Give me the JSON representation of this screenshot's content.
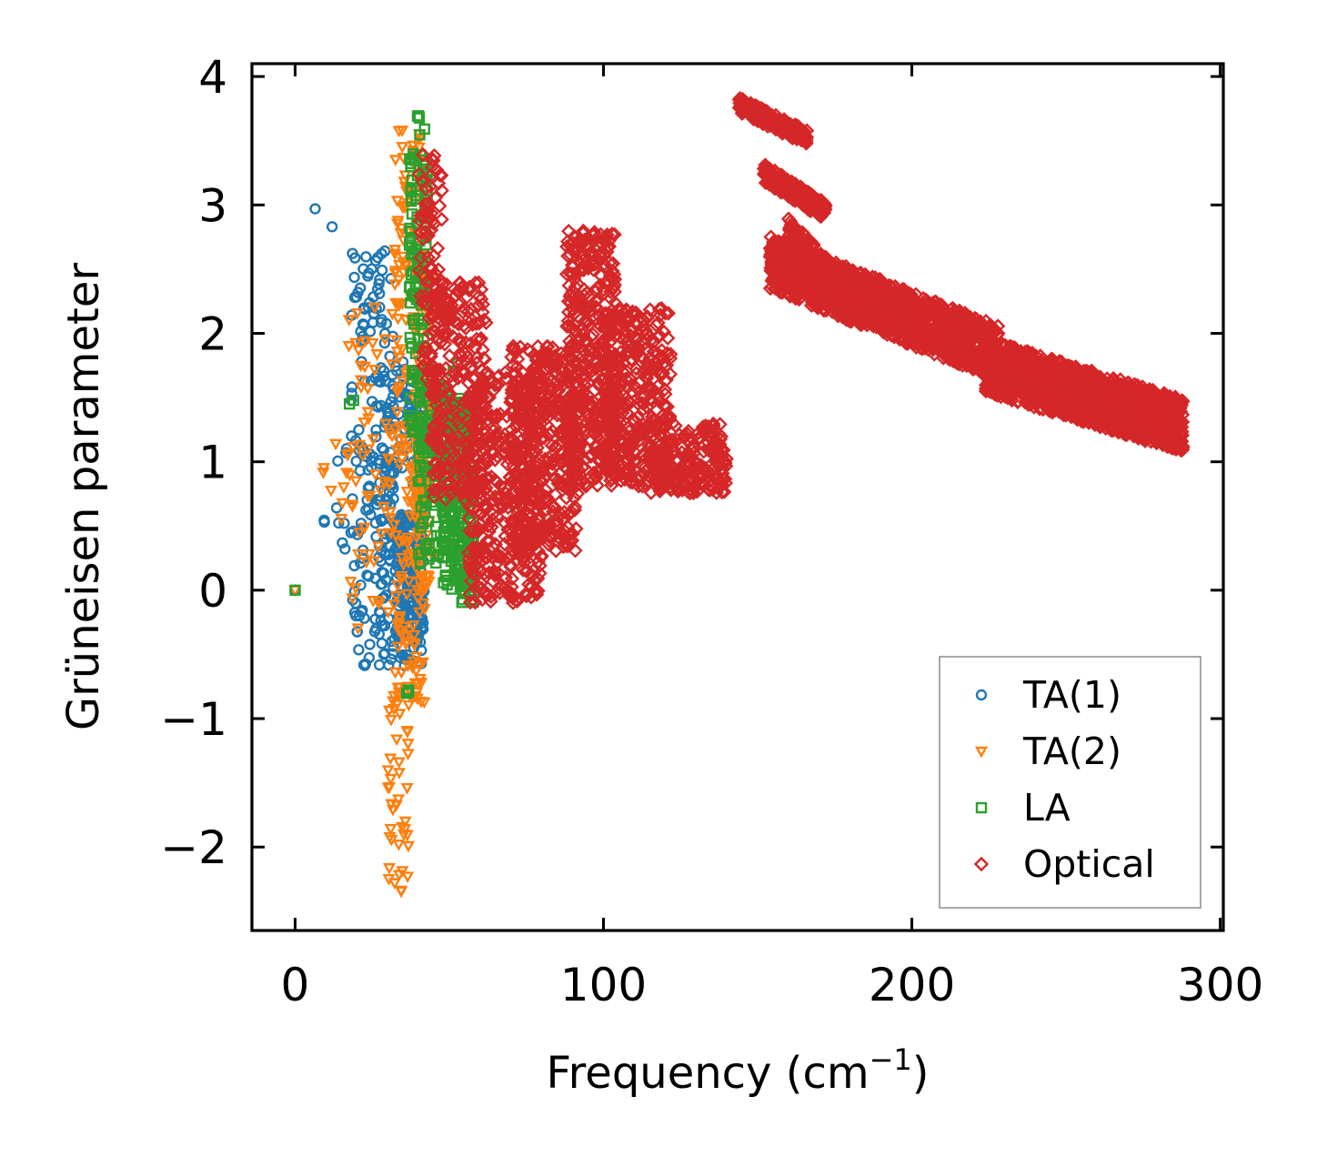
{
  "chart_data": {
    "type": "scatter",
    "title": "",
    "xlabel": "Frequency (cm",
    "xlabel_sup": "−1",
    "xlabel_end": ")",
    "ylabel": "Grüneisen parameter",
    "xlim": [
      -14,
      301
    ],
    "ylim": [
      -2.65,
      4.1
    ],
    "xticks": [
      0,
      100,
      200,
      300
    ],
    "xtick_labels": [
      "0",
      "100",
      "200",
      "300"
    ],
    "yticks": [
      -2,
      -1,
      0,
      1,
      2,
      3,
      4
    ],
    "ytick_labels": [
      "−2",
      "−1",
      "0",
      "1",
      "2",
      "3",
      "4"
    ],
    "grid": false,
    "legend_position": "lower-right",
    "series": [
      {
        "name": "TA(1)",
        "label": "TA(1)",
        "marker": "circle",
        "color": "#1f77b4",
        "clusters": [
          {
            "x": [
              0.0,
              0.0
            ],
            "y": [
              0.0,
              0.0
            ],
            "n": 2
          },
          {
            "x": [
              6.5,
              6.5
            ],
            "y": [
              2.97,
              2.97
            ],
            "n": 1
          },
          {
            "x": [
              12.0,
              12.0
            ],
            "y": [
              2.83,
              2.83
            ],
            "n": 1
          },
          {
            "x": [
              8.0,
              10.0
            ],
            "y": [
              0.52,
              0.55
            ],
            "n": 2
          },
          {
            "x": [
              13.0,
              17.0
            ],
            "y": [
              0.1,
              1.25
            ],
            "n": 8
          },
          {
            "x": [
              18.0,
              32.0
            ],
            "y": [
              -0.6,
              2.65
            ],
            "n": 170
          },
          {
            "x": [
              28.0,
              42.0
            ],
            "y": [
              -0.6,
              1.8
            ],
            "n": 180
          },
          {
            "x": [
              33.0,
              42.0
            ],
            "y": [
              -0.4,
              0.6
            ],
            "n": 120
          }
        ]
      },
      {
        "name": "TA(2)",
        "label": "TA(2)",
        "marker": "triangle-down",
        "color": "#ff7f0e",
        "clusters": [
          {
            "x": [
              0.0,
              0.0
            ],
            "y": [
              0.0,
              0.0
            ],
            "n": 1
          },
          {
            "x": [
              9.0,
              22.0
            ],
            "y": [
              0.5,
              1.25
            ],
            "n": 12
          },
          {
            "x": [
              17.0,
              32.0
            ],
            "y": [
              -0.3,
              2.3
            ],
            "n": 60
          },
          {
            "x": [
              30.0,
              37.0
            ],
            "y": [
              -2.35,
              -0.8
            ],
            "n": 40
          },
          {
            "x": [
              32.0,
              42.0
            ],
            "y": [
              -0.9,
              3.6
            ],
            "n": 220
          },
          {
            "x": [
              39.0,
              45.0
            ],
            "y": [
              0.0,
              2.6
            ],
            "n": 90
          }
        ]
      },
      {
        "name": "LA",
        "label": "LA",
        "marker": "square",
        "color": "#2ca02c",
        "clusters": [
          {
            "x": [
              0.0,
              0.0
            ],
            "y": [
              0.0,
              0.0
            ],
            "n": 1
          },
          {
            "x": [
              17.0,
              20.0
            ],
            "y": [
              1.35,
              1.5
            ],
            "n": 2
          },
          {
            "x": [
              35.5,
              38.0
            ],
            "y": [
              -0.85,
              -0.75
            ],
            "n": 3
          },
          {
            "x": [
              37.0,
              43.0
            ],
            "y": [
              1.0,
              3.7
            ],
            "n": 130
          },
          {
            "x": [
              40.0,
              50.0
            ],
            "y": [
              0.2,
              1.6
            ],
            "n": 120
          },
          {
            "x": [
              48.0,
              58.0
            ],
            "y": [
              -0.1,
              1.5
            ],
            "n": 260
          },
          {
            "x": [
              51.0,
              55.0
            ],
            "y": [
              1.7,
              1.8
            ],
            "n": 2
          }
        ]
      },
      {
        "name": "Optical",
        "label": "Optical",
        "marker": "diamond",
        "color": "#d62728",
        "clusters": [
          {
            "x": [
              40.0,
              48.0
            ],
            "y": [
              1.5,
              3.4
            ],
            "n": 90
          },
          {
            "x": [
              44.0,
              62.0
            ],
            "y": [
              0.7,
              2.4
            ],
            "n": 260
          },
          {
            "x": [
              56.0,
              80.0
            ],
            "y": [
              -0.1,
              1.7
            ],
            "n": 420
          },
          {
            "x": [
              70.0,
              92.0
            ],
            "y": [
              0.3,
              1.9
            ],
            "n": 420
          },
          {
            "x": [
              88.0,
              104.0
            ],
            "y": [
              0.8,
              2.8
            ],
            "n": 420
          },
          {
            "x": [
              100.0,
              122.0
            ],
            "y": [
              0.8,
              2.2
            ],
            "n": 380
          },
          {
            "x": [
              115.0,
              140.0
            ],
            "y": [
              0.75,
              1.3
            ],
            "n": 220
          }
        ],
        "bands": [
          {
            "x": [
              144.0,
              166.0
            ],
            "y": [
              3.78,
              3.52
            ],
            "width": 0.12,
            "n": 220
          },
          {
            "x": [
              152.0,
              172.0
            ],
            "y": [
              3.25,
              2.95
            ],
            "width": 0.14,
            "n": 200
          },
          {
            "x": [
              160.0,
              178.0
            ],
            "y": [
              2.75,
              2.3
            ],
            "width": 0.3,
            "n": 250
          },
          {
            "x": [
              154.0,
              228.0
            ],
            "y": [
              2.55,
              1.85
            ],
            "width": 0.42,
            "n": 1300
          },
          {
            "x": [
              224.0,
              288.0
            ],
            "y": [
              1.75,
              1.28
            ],
            "width": 0.42,
            "n": 1300
          }
        ]
      }
    ]
  }
}
